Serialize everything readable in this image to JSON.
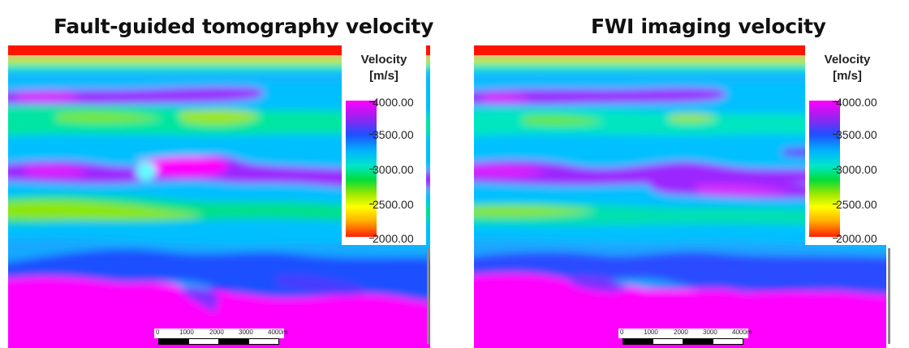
{
  "left_panel": {
    "title": "Fault-guided tomography velocity"
  },
  "right_panel": {
    "title": "FWI imaging velocity"
  },
  "legend": {
    "title_line1": "Velocity",
    "title_line2": "[m/s]",
    "ticks": [
      "4000.00",
      "3500.00",
      "3000.00",
      "2500.00",
      "2000.00"
    ]
  },
  "scale_bar": {
    "labels": [
      "0",
      "1000",
      "2000",
      "3000",
      "4000m"
    ]
  },
  "colors": {
    "max": "#ff00ff",
    "high": "#1e50ff",
    "mid": "#00e6c8",
    "low": "#ffff00",
    "min": "#ff2000"
  }
}
